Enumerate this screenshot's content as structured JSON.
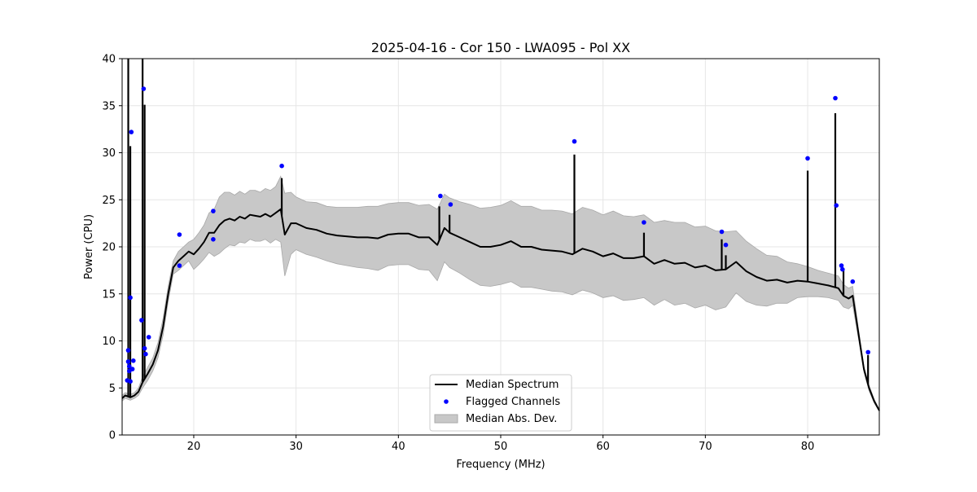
{
  "chart_data": {
    "type": "line",
    "title": "2025-04-16 - Cor 150 - LWA095 - Pol XX",
    "xlabel": "Frequency (MHz)",
    "ylabel": "Power (CPU)",
    "xlim": [
      13,
      87
    ],
    "ylim": [
      0,
      40
    ],
    "xticks": [
      20,
      30,
      40,
      50,
      60,
      70,
      80
    ],
    "yticks": [
      0,
      5,
      10,
      15,
      20,
      25,
      30,
      35,
      40
    ],
    "grid": true,
    "legend": {
      "placement": "lower-center",
      "entries": [
        "Median Spectrum",
        "Flagged Channels",
        "Median Abs. Dev."
      ]
    },
    "series": [
      {
        "name": "Median Spectrum",
        "color": "#000000",
        "x": [
          13.0,
          13.3,
          13.8,
          14.2,
          14.6,
          15.0,
          15.5,
          16.0,
          16.5,
          17.0,
          17.5,
          18.0,
          18.5,
          19.0,
          19.5,
          20.0,
          20.5,
          21.0,
          21.5,
          22.0,
          22.5,
          23.0,
          23.5,
          24.0,
          24.5,
          25.0,
          25.5,
          26.0,
          26.5,
          27.0,
          27.5,
          28.0,
          28.5,
          28.9,
          29.5,
          30.0,
          31.0,
          32.0,
          33.0,
          34.0,
          35.0,
          36.0,
          37.0,
          38.0,
          39.0,
          40.0,
          41.0,
          42.0,
          43.0,
          43.8,
          44.5,
          45.0,
          46.0,
          47.0,
          48.0,
          49.0,
          50.0,
          51.0,
          52.0,
          53.0,
          54.0,
          55.0,
          56.0,
          57.0,
          58.0,
          59.0,
          60.0,
          61.0,
          62.0,
          63.0,
          64.0,
          65.0,
          66.0,
          67.0,
          68.0,
          69.0,
          70.0,
          71.0,
          72.0,
          73.0,
          74.0,
          75.0,
          76.0,
          77.0,
          78.0,
          79.0,
          80.0,
          81.0,
          82.0,
          83.0,
          83.5,
          84.0,
          84.4,
          85.0,
          85.5,
          86.0,
          86.5,
          87.0
        ],
        "values": [
          3.9,
          4.2,
          4.0,
          4.2,
          4.6,
          5.6,
          6.5,
          7.5,
          9.0,
          11.5,
          15.0,
          17.8,
          18.5,
          19.0,
          19.5,
          19.2,
          19.8,
          20.5,
          21.5,
          21.5,
          22.3,
          22.8,
          23.0,
          22.8,
          23.2,
          23.0,
          23.4,
          23.3,
          23.2,
          23.5,
          23.2,
          23.6,
          24.0,
          21.3,
          22.5,
          22.5,
          22.0,
          21.8,
          21.4,
          21.2,
          21.1,
          21.0,
          21.0,
          20.9,
          21.3,
          21.4,
          21.4,
          21.0,
          21.0,
          20.2,
          22.0,
          21.5,
          21.0,
          20.5,
          20.0,
          20.0,
          20.2,
          20.6,
          20.0,
          20.0,
          19.7,
          19.6,
          19.5,
          19.2,
          19.8,
          19.5,
          19.0,
          19.3,
          18.8,
          18.8,
          19.0,
          18.2,
          18.6,
          18.2,
          18.3,
          17.8,
          18.0,
          17.5,
          17.6,
          18.4,
          17.4,
          16.8,
          16.4,
          16.5,
          16.2,
          16.4,
          16.3,
          16.1,
          15.9,
          15.6,
          14.8,
          14.5,
          14.8,
          10.5,
          7.0,
          5.0,
          3.6,
          2.6
        ],
        "spikes": [
          {
            "x": 13.6,
            "y": 40.0
          },
          {
            "x": 13.8,
            "y": 30.7
          },
          {
            "x": 15.0,
            "y": 40.0
          },
          {
            "x": 15.2,
            "y": 35.1
          },
          {
            "x": 28.6,
            "y": 27.3
          },
          {
            "x": 44.0,
            "y": 24.3
          },
          {
            "x": 45.0,
            "y": 23.4
          },
          {
            "x": 57.2,
            "y": 29.8
          },
          {
            "x": 64.0,
            "y": 21.5
          },
          {
            "x": 71.6,
            "y": 20.8
          },
          {
            "x": 72.0,
            "y": 19.1
          },
          {
            "x": 80.0,
            "y": 28.1
          },
          {
            "x": 82.7,
            "y": 34.2
          },
          {
            "x": 83.5,
            "y": 17.5
          },
          {
            "x": 85.9,
            "y": 8.5
          }
        ]
      },
      {
        "name": "Flagged Channels",
        "color": "#0000ff",
        "points": [
          {
            "x": 13.5,
            "y": 5.8
          },
          {
            "x": 13.6,
            "y": 9.0
          },
          {
            "x": 13.6,
            "y": 7.8
          },
          {
            "x": 13.7,
            "y": 7.3
          },
          {
            "x": 13.7,
            "y": 6.8
          },
          {
            "x": 13.8,
            "y": 14.6
          },
          {
            "x": 13.8,
            "y": 5.7
          },
          {
            "x": 13.9,
            "y": 32.2
          },
          {
            "x": 14.0,
            "y": 7.0
          },
          {
            "x": 14.1,
            "y": 7.9
          },
          {
            "x": 14.9,
            "y": 12.2
          },
          {
            "x": 15.1,
            "y": 36.8
          },
          {
            "x": 15.2,
            "y": 9.2
          },
          {
            "x": 15.3,
            "y": 8.6
          },
          {
            "x": 15.6,
            "y": 10.4
          },
          {
            "x": 18.6,
            "y": 21.3
          },
          {
            "x": 18.6,
            "y": 18.0
          },
          {
            "x": 21.9,
            "y": 23.8
          },
          {
            "x": 21.9,
            "y": 20.8
          },
          {
            "x": 28.6,
            "y": 28.6
          },
          {
            "x": 44.1,
            "y": 25.4
          },
          {
            "x": 45.1,
            "y": 24.5
          },
          {
            "x": 57.2,
            "y": 31.2
          },
          {
            "x": 64.0,
            "y": 22.6
          },
          {
            "x": 71.6,
            "y": 21.6
          },
          {
            "x": 72.0,
            "y": 20.2
          },
          {
            "x": 80.0,
            "y": 29.4
          },
          {
            "x": 82.7,
            "y": 35.8
          },
          {
            "x": 82.8,
            "y": 24.4
          },
          {
            "x": 83.3,
            "y": 18.0
          },
          {
            "x": 83.4,
            "y": 17.6
          },
          {
            "x": 84.4,
            "y": 16.3
          },
          {
            "x": 85.9,
            "y": 8.8
          }
        ]
      },
      {
        "name": "Median Abs. Dev.",
        "color": "#c8c8c8",
        "x": [
          13.0,
          13.3,
          13.8,
          14.2,
          14.6,
          15.0,
          15.5,
          16.0,
          16.5,
          17.0,
          17.5,
          18.0,
          18.5,
          19.0,
          19.5,
          20.0,
          20.5,
          21.0,
          21.5,
          22.0,
          22.5,
          23.0,
          23.5,
          24.0,
          24.5,
          25.0,
          25.5,
          26.0,
          26.5,
          27.0,
          27.5,
          28.0,
          28.5,
          28.9,
          29.5,
          30.0,
          31.0,
          32.0,
          33.0,
          34.0,
          35.0,
          36.0,
          37.0,
          38.0,
          39.0,
          40.0,
          41.0,
          42.0,
          43.0,
          43.8,
          44.5,
          45.0,
          46.0,
          47.0,
          48.0,
          49.0,
          50.0,
          51.0,
          52.0,
          53.0,
          54.0,
          55.0,
          56.0,
          57.0,
          58.0,
          59.0,
          60.0,
          61.0,
          62.0,
          63.0,
          64.0,
          65.0,
          66.0,
          67.0,
          68.0,
          69.0,
          70.0,
          71.0,
          72.0,
          73.0,
          74.0,
          75.0,
          76.0,
          77.0,
          78.0,
          79.0,
          80.0,
          81.0,
          82.0,
          83.0,
          83.5,
          84.0,
          84.4,
          85.0,
          85.5,
          86.0,
          86.5,
          87.0
        ],
        "upper": [
          4.2,
          4.5,
          4.3,
          4.5,
          5.0,
          6.2,
          7.2,
          8.2,
          9.8,
          12.4,
          15.8,
          18.5,
          19.5,
          20.0,
          20.5,
          20.8,
          21.5,
          22.3,
          23.6,
          24.0,
          25.3,
          25.8,
          25.8,
          25.5,
          25.9,
          25.6,
          26.0,
          26.0,
          25.8,
          26.2,
          26.0,
          26.4,
          27.5,
          25.7,
          25.8,
          25.3,
          24.8,
          24.7,
          24.3,
          24.2,
          24.2,
          24.2,
          24.3,
          24.3,
          24.6,
          24.7,
          24.7,
          24.4,
          24.5,
          24.0,
          25.6,
          25.2,
          24.8,
          24.5,
          24.1,
          24.2,
          24.4,
          24.9,
          24.3,
          24.3,
          23.9,
          23.9,
          23.8,
          23.5,
          24.2,
          23.9,
          23.4,
          23.8,
          23.3,
          23.2,
          23.4,
          22.6,
          22.8,
          22.6,
          22.6,
          22.1,
          22.2,
          21.7,
          21.6,
          21.7,
          20.6,
          19.8,
          19.1,
          19.0,
          18.4,
          18.2,
          17.9,
          17.5,
          17.2,
          16.9,
          16.0,
          15.6,
          15.8,
          11.0,
          7.3,
          5.3,
          3.8,
          2.7
        ],
        "lower": [
          3.6,
          3.9,
          3.7,
          3.9,
          4.2,
          5.0,
          5.8,
          6.8,
          8.2,
          10.6,
          14.2,
          17.1,
          17.5,
          18.0,
          18.5,
          17.6,
          18.1,
          18.7,
          19.4,
          19.0,
          19.3,
          19.8,
          20.2,
          20.1,
          20.5,
          20.4,
          20.8,
          20.6,
          20.6,
          20.8,
          20.4,
          20.8,
          20.5,
          16.9,
          19.2,
          19.7,
          19.2,
          18.9,
          18.5,
          18.2,
          18.0,
          17.8,
          17.7,
          17.5,
          18.0,
          18.1,
          18.1,
          17.6,
          17.5,
          16.4,
          18.4,
          17.8,
          17.2,
          16.5,
          15.9,
          15.8,
          16.0,
          16.3,
          15.7,
          15.7,
          15.5,
          15.3,
          15.2,
          14.9,
          15.4,
          15.1,
          14.6,
          14.8,
          14.3,
          14.4,
          14.6,
          13.8,
          14.4,
          13.8,
          14.0,
          13.5,
          13.8,
          13.3,
          13.6,
          15.1,
          14.2,
          13.8,
          13.7,
          14.0,
          14.0,
          14.6,
          14.7,
          14.7,
          14.6,
          14.3,
          13.6,
          13.4,
          13.8,
          10.0,
          6.7,
          4.7,
          3.4,
          2.5
        ]
      }
    ]
  }
}
